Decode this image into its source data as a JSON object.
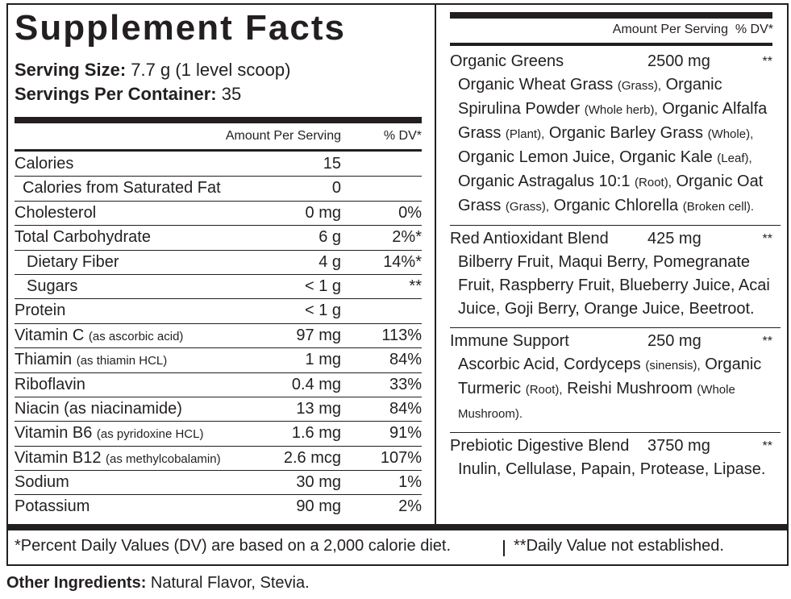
{
  "title": "Supplement Facts",
  "serving_size": {
    "label": "Serving Size:",
    "value": "7.7 g (1 level scoop)"
  },
  "servings_per_container": {
    "label": "Servings Per Container:",
    "value": "35"
  },
  "left_table": {
    "header": {
      "amount": "Amount Per Serving",
      "dv": "% DV*"
    },
    "rows": [
      {
        "name": "Calories",
        "amount": "15"
      },
      {
        "name": "Calories from Saturated Fat",
        "amount": "0"
      },
      {
        "name": "Cholesterol",
        "amount": "0 mg",
        "dv": "0%"
      },
      {
        "name": "Total Carbohydrate",
        "amount": "6 g",
        "dv": "2%*"
      },
      {
        "name": "Dietary Fiber",
        "amount": "4 g",
        "dv": "14%*"
      },
      {
        "name": "Sugars",
        "amount": "< 1 g",
        "dv": "**"
      },
      {
        "name": "Protein",
        "amount": "< 1 g"
      },
      {
        "name": "Vitamin C",
        "note": "(as ascorbic acid)",
        "amount": "97 mg",
        "dv": "113%"
      },
      {
        "name": "Thiamin",
        "note": "(as thiamin HCL)",
        "amount": "1 mg",
        "dv": "84%"
      },
      {
        "name": "Riboflavin",
        "amount": "0.4 mg",
        "dv": "33%"
      },
      {
        "name": "Niacin (as niacinamide)",
        "amount": "13 mg",
        "dv": "84%"
      },
      {
        "name": "Vitamin B6",
        "note": "(as pyridoxine HCL)",
        "amount": "1.6 mg",
        "dv": "91%"
      },
      {
        "name": "Vitamin B12",
        "note": "(as methylcobalamin)",
        "amount": "2.6 mcg",
        "dv": "107%"
      },
      {
        "name": "Sodium",
        "amount": "30 mg",
        "dv": "1%"
      },
      {
        "name": "Potassium",
        "amount": "90 mg",
        "dv": "2%"
      }
    ]
  },
  "right_table": {
    "header": "Amount Per Serving  % DV*",
    "blends": [
      {
        "name": "Organic Greens",
        "amount": "2500 mg",
        "dv": "**",
        "ingredients": [
          {
            "name": "Organic Wheat Grass",
            "part": "(Grass),"
          },
          {
            "name": "Organic Spirulina Powder",
            "part": "(Whole herb),"
          },
          {
            "name": "Organic Alfalfa Grass",
            "part": "(Plant),"
          },
          {
            "name": "Organic Barley Grass",
            "part": "(Whole),"
          },
          {
            "name": "Organic Lemon Juice,"
          },
          {
            "name": "Organic Kale",
            "part": "(Leaf),"
          },
          {
            "name": "Organic Astragalus 10:1",
            "part": "(Root),"
          },
          {
            "name": "Organic Oat Grass",
            "part": "(Grass),"
          },
          {
            "name": "Organic Chlorella",
            "part": "(Broken cell)."
          }
        ]
      },
      {
        "name": "Red Antioxidant Blend",
        "amount": "425 mg",
        "dv": "**",
        "ingredients": [
          {
            "name": "Bilberry Fruit,"
          },
          {
            "name": "Maqui Berry,"
          },
          {
            "name": "Pomegranate Fruit,"
          },
          {
            "name": "Raspberry Fruit,"
          },
          {
            "name": "Blueberry Juice,"
          },
          {
            "name": "Acai Juice,"
          },
          {
            "name": "Goji Berry,"
          },
          {
            "name": "Orange Juice,"
          },
          {
            "name": "Beetroot."
          }
        ]
      },
      {
        "name": "Immune Support",
        "amount": "250 mg",
        "dv": "**",
        "ingredients": [
          {
            "name": "Ascorbic Acid,"
          },
          {
            "name": "Cordyceps",
            "part": "(sinensis),"
          },
          {
            "name": "Organic Turmeric",
            "part": "(Root),"
          },
          {
            "name": "Reishi Mushroom",
            "part": "(Whole Mushroom)."
          }
        ]
      },
      {
        "name": "Prebiotic Digestive Blend",
        "amount": "3750 mg",
        "dv": "**",
        "ingredients": [
          {
            "name": "Inulin,"
          },
          {
            "name": "Cellulase,"
          },
          {
            "name": "Papain,"
          },
          {
            "name": "Protease,"
          },
          {
            "name": "Lipase."
          }
        ]
      }
    ]
  },
  "footnotes": [
    "*Percent Daily Values (DV) are based on a 2,000 calorie diet.",
    "**Daily Value not established."
  ],
  "other_ingredients": {
    "label": "Other Ingredients:",
    "value": "Natural Flavor, Stevia."
  }
}
